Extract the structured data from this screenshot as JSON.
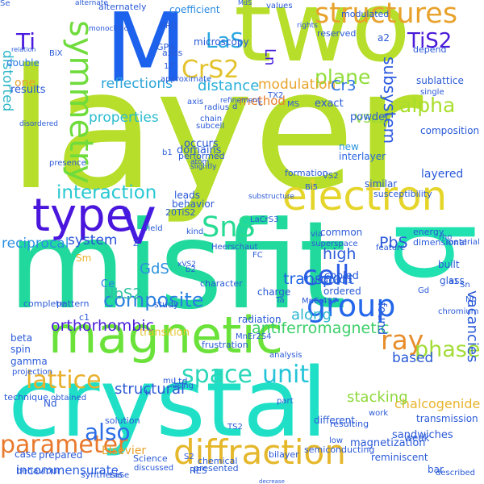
{
  "words": [
    {
      "text": "layer",
      "color": "#b6de2a"
    },
    {
      "text": "misfit",
      "color": "#21d99c"
    },
    {
      "text": "crystal",
      "color": "#1fe0c7"
    },
    {
      "text": "b",
      "color": "#20e1b0"
    },
    {
      "text": "two",
      "color": "#b8de2c"
    },
    {
      "text": "M",
      "color": "#1c62ec"
    },
    {
      "text": "magnetic",
      "color": "#6ae23a"
    },
    {
      "text": "electron",
      "color": "#e5d52a"
    },
    {
      "text": "type",
      "color": "#4a15dc"
    },
    {
      "text": "V",
      "color": "#451be0"
    },
    {
      "text": "diffraction",
      "color": "#e5b72b"
    },
    {
      "text": "SnS",
      "color": "#26db93"
    },
    {
      "text": "group",
      "color": "#2367ea"
    },
    {
      "text": "symmetry",
      "color": "#6fdc3c"
    },
    {
      "text": "structures",
      "color": "#e8a22c"
    },
    {
      "text": "TiS2",
      "color": "#4a1bd8"
    },
    {
      "text": "CrS2",
      "color": "#e3c22c"
    },
    {
      "text": "Ti",
      "color": "#4a1ae0"
    },
    {
      "text": "LaS",
      "color": "#29a8e0"
    },
    {
      "text": "Ln",
      "color": "#461bde"
    },
    {
      "text": "cell",
      "color": "#2a5ce4"
    },
    {
      "text": "ray",
      "color": "#e88d2c"
    },
    {
      "text": "space",
      "color": "#2bd7b8"
    },
    {
      "text": "unit",
      "color": "#23c4d8"
    },
    {
      "text": "lattice",
      "color": "#e8b02c"
    },
    {
      "text": "parameter",
      "color": "#e9792c"
    },
    {
      "text": "interaction",
      "color": "#29c8d2"
    },
    {
      "text": "also",
      "color": "#2c6de8"
    },
    {
      "text": "distorted",
      "color": "#2eb6c8"
    },
    {
      "text": "plane",
      "color": "#90de3a"
    },
    {
      "text": "subsystem",
      "color": "#2c5ae0"
    },
    {
      "text": "alpha",
      "color": "#a8de2c"
    },
    {
      "text": "phase",
      "color": "#a3dc36"
    },
    {
      "text": "composite",
      "color": "#2a7fe0"
    },
    {
      "text": "structural",
      "color": "#2f5ad8"
    },
    {
      "text": "modulation",
      "color": "#e8a42c"
    },
    {
      "text": "method",
      "color": "#e87e2c"
    },
    {
      "text": "reflections",
      "color": "#2aa4d8"
    },
    {
      "text": "properties",
      "color": "#2abcd0"
    },
    {
      "text": "distance",
      "color": "#2ab0da"
    },
    {
      "text": "orthorhombic",
      "color": "#4a1edb"
    },
    {
      "text": "antiferromagnetic",
      "color": "#3dcf6a"
    },
    {
      "text": "chalcogenide",
      "color": "#e8b42c"
    },
    {
      "text": "incommensurate",
      "color": "#2a5ce0"
    },
    {
      "text": "Elsevier",
      "color": "#e8a22c"
    },
    {
      "text": "transition",
      "color": "#e5c52c"
    },
    {
      "text": "transport",
      "color": "#1f64e4"
    },
    {
      "text": "system",
      "color": "#2a52d8"
    },
    {
      "text": "reciprocal",
      "color": "#2a8fe2"
    },
    {
      "text": "new",
      "color": "#2a96e0"
    },
    {
      "text": "interlayer",
      "color": "#2a66e2"
    },
    {
      "text": "layered",
      "color": "#2a5ad8"
    },
    {
      "text": "VSe2",
      "color": "#8ed83a"
    },
    {
      "text": "GdS",
      "color": "#2a92e0"
    },
    {
      "text": "PbS",
      "color": "#2a58d8"
    },
    {
      "text": "NbS2",
      "color": "#30c0a0"
    },
    {
      "text": "Cr3",
      "color": "#2a6ee2"
    },
    {
      "text": "high",
      "color": "#2a5ad8"
    },
    {
      "text": "along",
      "color": "#2ab7d2"
    },
    {
      "text": "found",
      "color": "#2a5ad8"
    },
    {
      "text": "based",
      "color": "#2a5ad8"
    },
    {
      "text": "stacking",
      "color": "#8ed83a"
    },
    {
      "text": "vacancies",
      "color": "#2a5ad8"
    },
    {
      "text": "Ce",
      "color": "#2a7ee0"
    },
    {
      "text": "Sm",
      "color": "#e8b42c"
    },
    {
      "text": "results",
      "color": "#2a5ad8"
    },
    {
      "text": "one",
      "color": "#e8a22c"
    },
    {
      "text": "double",
      "color": "#2a7ae2"
    },
    {
      "text": "coefficient",
      "color": "#2a8ae2"
    },
    {
      "text": "GPa",
      "color": "#2a5ad8"
    },
    {
      "text": "microscopy",
      "color": "#2a5ad8"
    },
    {
      "text": "exact",
      "color": "#2a5ad8"
    },
    {
      "text": "occurs",
      "color": "#2a5ad8"
    },
    {
      "text": "domains",
      "color": "#2a5ad8"
    },
    {
      "text": "performed",
      "color": "#2a5ad8"
    },
    {
      "text": "formation",
      "color": "#2a5ad8"
    },
    {
      "text": "susceptibility",
      "color": "#2a5ad8"
    },
    {
      "text": "similar",
      "color": "#2a5ad8"
    },
    {
      "text": "leads",
      "color": "#2a5ad8"
    },
    {
      "text": "behavior",
      "color": "#2a5ad8"
    },
    {
      "text": "common",
      "color": "#2a5ad8"
    },
    {
      "text": "energy",
      "color": "#2a5ad8"
    },
    {
      "text": "dimensional",
      "color": "#2a5ad8"
    },
    {
      "text": "cooled",
      "color": "#2a5ad8"
    },
    {
      "text": "ordered",
      "color": "#2a5ad8"
    },
    {
      "text": "built",
      "color": "#2a5ad8"
    },
    {
      "text": "glass",
      "color": "#2a5ad8"
    },
    {
      "text": "chromium",
      "color": "#2a5ad8"
    },
    {
      "text": "composition",
      "color": "#2a5ad8"
    },
    {
      "text": "powder",
      "color": "#2a5ad8"
    },
    {
      "text": "sublattice",
      "color": "#2a5ad8"
    },
    {
      "text": "material",
      "color": "#2a5ad8"
    },
    {
      "text": "beta",
      "color": "#2a5ad8"
    },
    {
      "text": "spin",
      "color": "#2a5ad8"
    },
    {
      "text": "gamma",
      "color": "#2a5ad8"
    },
    {
      "text": "Ltd",
      "color": "#2a5ad8"
    },
    {
      "text": "frustration",
      "color": "#2a5ad8"
    },
    {
      "text": "semiconducting",
      "color": "#2a5ad8"
    },
    {
      "text": "different",
      "color": "#2a5ad8"
    },
    {
      "text": "bilayer",
      "color": "#2a5ad8"
    },
    {
      "text": "solution",
      "color": "#2a5ad8"
    },
    {
      "text": "prepared",
      "color": "#2a5ad8"
    },
    {
      "text": "case",
      "color": "#2a5ad8"
    },
    {
      "text": "chemical",
      "color": "#2a5ad8"
    },
    {
      "text": "Science",
      "color": "#2a5ad8"
    },
    {
      "text": "synthesis",
      "color": "#2a5ad8"
    },
    {
      "text": "RES",
      "color": "#2a5ad8"
    },
    {
      "text": "decrease",
      "color": "#2a5ad8"
    },
    {
      "text": "magnetization",
      "color": "#2a5ad8"
    },
    {
      "text": "sandwiches",
      "color": "#2a5ad8"
    },
    {
      "text": "reminiscent",
      "color": "#2a5ad8"
    },
    {
      "text": "bar",
      "color": "#2a5ad8"
    },
    {
      "text": "described",
      "color": "#2a5ad8"
    },
    {
      "text": "LaSe",
      "color": "#2a5ad8"
    },
    {
      "text": "weak",
      "color": "#2a5ad8"
    },
    {
      "text": "transmission",
      "color": "#2a5ad8"
    },
    {
      "text": "mu",
      "color": "#2a5ad8"
    },
    {
      "text": "Nd",
      "color": "#2a5ad8"
    },
    {
      "text": "c1",
      "color": "#2a5ad8"
    },
    {
      "text": "Sn",
      "color": "#2a5ad8"
    },
    {
      "text": "a1",
      "color": "#2a5ad8"
    },
    {
      "text": "Nb",
      "color": "#2a5ad8"
    },
    {
      "text": "Gd",
      "color": "#2a5ad8"
    },
    {
      "text": "rho",
      "color": "#2a5ad8"
    },
    {
      "text": "feature",
      "color": "#2a5ad8"
    },
    {
      "text": "superspace",
      "color": "#2a5ad8"
    },
    {
      "text": "20TiS2",
      "color": "#2a5ad8"
    },
    {
      "text": "study",
      "color": "#2a5ad8"
    },
    {
      "text": "character",
      "color": "#2a5ad8"
    },
    {
      "text": "pattern",
      "color": "#2a5ad8"
    },
    {
      "text": "charge",
      "color": "#2a5ad8"
    },
    {
      "text": "radiation",
      "color": "#2a5ad8"
    },
    {
      "text": "part",
      "color": "#2a5ad8"
    },
    {
      "text": "analysis",
      "color": "#2a5ad8"
    },
    {
      "text": "using",
      "color": "#2a5ad8"
    },
    {
      "text": "obtained",
      "color": "#2a5ad8"
    },
    {
      "text": "resulting",
      "color": "#2a5ad8"
    },
    {
      "text": "low",
      "color": "#2a5ad8"
    },
    {
      "text": "behaviour",
      "color": "#2a5ad8"
    },
    {
      "text": "projection",
      "color": "#2a5ad8"
    },
    {
      "text": "technique",
      "color": "#2a5ad8"
    },
    {
      "text": "complete",
      "color": "#2a5ad8"
    },
    {
      "text": "presented",
      "color": "#2a5ad8"
    },
    {
      "text": "discussed",
      "color": "#2a5ad8"
    },
    {
      "text": "TS2",
      "color": "#2a5ad8"
    },
    {
      "text": "H",
      "color": "#2a5ad8"
    },
    {
      "text": "S2",
      "color": "#2a5ad8"
    },
    {
      "text": "b2",
      "color": "#2a5ad8"
    },
    {
      "text": "work",
      "color": "#2a5ad8"
    },
    {
      "text": "via",
      "color": "#2a5ad8"
    },
    {
      "text": "MnEr4S7",
      "color": "#2a5ad8"
    },
    {
      "text": "MnEr2S4",
      "color": "#2a5ad8"
    },
    {
      "text": "NH4CdCl3",
      "color": "#2a5ad8"
    },
    {
      "text": "Bi5",
      "color": "#2a5ad8"
    },
    {
      "text": "substructure",
      "color": "#2a5ad8"
    },
    {
      "text": "LaCrS3",
      "color": "#2a5ad8"
    },
    {
      "text": "kind",
      "color": "#2a5ad8"
    },
    {
      "text": "FC",
      "color": "#2a5ad8"
    },
    {
      "text": "Ta",
      "color": "#2a5ad8"
    },
    {
      "text": "VS2",
      "color": "#2a5ad8"
    },
    {
      "text": "xVS2",
      "color": "#2a5ad8"
    },
    {
      "text": "Z",
      "color": "#2a5ad8"
    },
    {
      "text": "Heerschaut",
      "color": "#2a5ad8"
    },
    {
      "text": "field",
      "color": "#2a5ad8"
    },
    {
      "text": "slightly",
      "color": "#2a5ad8"
    },
    {
      "text": "radius",
      "color": "#2a5ad8"
    },
    {
      "text": "subcell",
      "color": "#2a5ad8"
    },
    {
      "text": "atom",
      "color": "#2a5ad8"
    },
    {
      "text": "presence",
      "color": "#2a5ad8"
    },
    {
      "text": "b1",
      "color": "#2a5ad8"
    },
    {
      "text": "chain",
      "color": "#2a5ad8"
    },
    {
      "text": "refinement",
      "color": "#2a5ad8"
    },
    {
      "text": "TX2",
      "color": "#2a5ad8"
    },
    {
      "text": "MS",
      "color": "#2a5ad8"
    },
    {
      "text": "d",
      "color": "#2a5ad8"
    },
    {
      "text": "c",
      "color": "#2a5ad8"
    },
    {
      "text": "1T",
      "color": "#2a5ad8"
    },
    {
      "text": "XRD",
      "color": "#2a5ad8"
    },
    {
      "text": "axes",
      "color": "#2a5ad8"
    },
    {
      "text": "axis",
      "color": "#2a5ad8"
    },
    {
      "text": "approximate",
      "color": "#2a5ad8"
    },
    {
      "text": "monoclinic",
      "color": "#2a5ad8"
    },
    {
      "text": "BiX",
      "color": "#2a5ad8"
    },
    {
      "text": "relation",
      "color": "#2a5ad8"
    },
    {
      "text": "disordered",
      "color": "#2a5ad8"
    },
    {
      "text": "alternate",
      "color": "#2a5ad8"
    },
    {
      "text": "alternately",
      "color": "#2a5ad8"
    },
    {
      "text": "MdS",
      "color": "#2a5ad8"
    },
    {
      "text": "values",
      "color": "#2a5ad8"
    },
    {
      "text": "rights",
      "color": "#2a5ad8"
    },
    {
      "text": "reserved",
      "color": "#2a5ad8"
    },
    {
      "text": "depend",
      "color": "#2a5ad8"
    },
    {
      "text": "a2",
      "color": "#2a5ad8"
    },
    {
      "text": "single",
      "color": "#2a5ad8"
    },
    {
      "text": "modulated",
      "color": "#2a5ad8"
    },
    {
      "text": "Se",
      "color": "#2a5ad8"
    }
  ]
}
